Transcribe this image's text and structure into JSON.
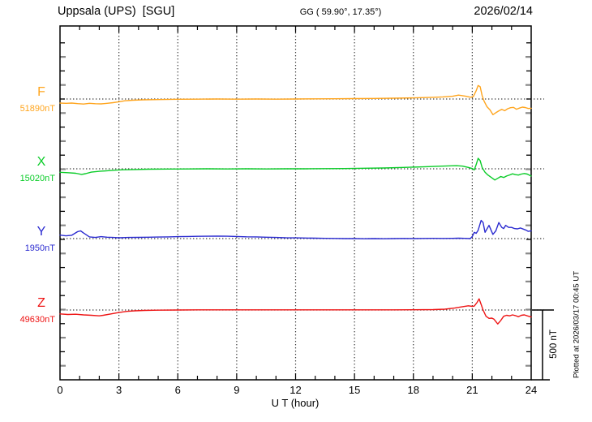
{
  "header": {
    "station": "Uppsala (UPS)  [SGU]",
    "coords": "GG ( 59.90°, 17.35°)",
    "date": "2026/02/14"
  },
  "footer": {
    "xlabel": "U T (hour)",
    "scale_bar_label": "500 nT",
    "plotted_at": "Plotted at 2026/03/17 00:45 UT"
  },
  "chart_data": {
    "type": "line",
    "title": "Uppsala (UPS) [SGU] magnetogram for 2026/02/14",
    "xlabel": "U T (hour)",
    "x_range": [
      0,
      24
    ],
    "x_tick_labels": [
      "0",
      "3",
      "6",
      "9",
      "12",
      "15",
      "18",
      "21",
      "24"
    ],
    "x_gridline_hours": [
      3,
      6,
      9,
      12,
      15,
      18,
      21
    ],
    "scale_bar_nT": 500,
    "grid": "dotted vertical every 3 h, dotted horizontal baseline per component",
    "legend_position": "left margin, one colored label per trace",
    "series": [
      {
        "name": "F",
        "baseline_label": "51890nT",
        "baseline_nT": 51890,
        "color": "#FFA51E",
        "points": [
          [
            0,
            -29
          ],
          [
            0.3,
            -31
          ],
          [
            0.6,
            -29
          ],
          [
            0.9,
            -33
          ],
          [
            1.2,
            -36
          ],
          [
            1.5,
            -31
          ],
          [
            1.8,
            -34
          ],
          [
            2.1,
            -35
          ],
          [
            2.4,
            -31
          ],
          [
            2.7,
            -26
          ],
          [
            3,
            -20
          ],
          [
            3.3,
            -13
          ],
          [
            3.7,
            -9
          ],
          [
            4.2,
            -6
          ],
          [
            5,
            -4
          ],
          [
            6,
            -2
          ],
          [
            7,
            -1
          ],
          [
            8,
            0
          ],
          [
            9,
            -1
          ],
          [
            10,
            0
          ],
          [
            11,
            -1
          ],
          [
            12,
            0
          ],
          [
            13,
            1
          ],
          [
            14,
            2
          ],
          [
            15,
            3
          ],
          [
            16,
            4
          ],
          [
            17,
            6
          ],
          [
            18,
            8
          ],
          [
            19,
            12
          ],
          [
            19.5,
            15
          ],
          [
            20,
            20
          ],
          [
            20.3,
            28
          ],
          [
            20.5,
            24
          ],
          [
            20.7,
            19
          ],
          [
            20.9,
            13
          ],
          [
            21.05,
            17
          ],
          [
            21.2,
            60
          ],
          [
            21.3,
            97
          ],
          [
            21.4,
            88
          ],
          [
            21.5,
            25
          ],
          [
            21.6,
            -15
          ],
          [
            21.75,
            -55
          ],
          [
            21.9,
            -78
          ],
          [
            22.05,
            -112
          ],
          [
            22.2,
            -98
          ],
          [
            22.35,
            -85
          ],
          [
            22.5,
            -74
          ],
          [
            22.65,
            -84
          ],
          [
            22.8,
            -70
          ],
          [
            22.95,
            -62
          ],
          [
            23.1,
            -60
          ],
          [
            23.25,
            -73
          ],
          [
            23.4,
            -65
          ],
          [
            23.55,
            -58
          ],
          [
            23.7,
            -61
          ],
          [
            23.85,
            -68
          ],
          [
            24,
            -66
          ]
        ]
      },
      {
        "name": "X",
        "baseline_label": "15020nT",
        "baseline_nT": 15020,
        "color": "#0ACC28",
        "points": [
          [
            0,
            -25
          ],
          [
            0.4,
            -28
          ],
          [
            0.8,
            -32
          ],
          [
            1.1,
            -40
          ],
          [
            1.3,
            -35
          ],
          [
            1.6,
            -24
          ],
          [
            2,
            -18
          ],
          [
            2.4,
            -14
          ],
          [
            2.8,
            -10
          ],
          [
            3.2,
            -7
          ],
          [
            3.8,
            -5
          ],
          [
            4.5,
            -3
          ],
          [
            5.5,
            -2
          ],
          [
            6.5,
            -1
          ],
          [
            7.5,
            0
          ],
          [
            8.5,
            -1
          ],
          [
            9.5,
            0
          ],
          [
            10.5,
            -1
          ],
          [
            11.5,
            0
          ],
          [
            12.5,
            0
          ],
          [
            13.5,
            1
          ],
          [
            14.5,
            2
          ],
          [
            15.5,
            4
          ],
          [
            16.5,
            6
          ],
          [
            17.5,
            10
          ],
          [
            18.5,
            14
          ],
          [
            19.2,
            18
          ],
          [
            19.8,
            21
          ],
          [
            20.2,
            22
          ],
          [
            20.5,
            19
          ],
          [
            20.8,
            10
          ],
          [
            21,
            2
          ],
          [
            21.1,
            -8
          ],
          [
            21.2,
            30
          ],
          [
            21.3,
            75
          ],
          [
            21.4,
            58
          ],
          [
            21.5,
            10
          ],
          [
            21.65,
            -25
          ],
          [
            21.8,
            -45
          ],
          [
            22,
            -65
          ],
          [
            22.15,
            -80
          ],
          [
            22.3,
            -68
          ],
          [
            22.45,
            -55
          ],
          [
            22.6,
            -62
          ],
          [
            22.75,
            -52
          ],
          [
            22.9,
            -44
          ],
          [
            23.05,
            -36
          ],
          [
            23.2,
            -42
          ],
          [
            23.35,
            -45
          ],
          [
            23.5,
            -38
          ],
          [
            23.65,
            -34
          ],
          [
            23.8,
            -38
          ],
          [
            23.9,
            -45
          ],
          [
            24,
            -52
          ]
        ]
      },
      {
        "name": "Y",
        "baseline_label": "1950nT",
        "baseline_nT": 1950,
        "color": "#2B2BD0",
        "points": [
          [
            0,
            25
          ],
          [
            0.3,
            20
          ],
          [
            0.6,
            24
          ],
          [
            0.9,
            50
          ],
          [
            1.05,
            55
          ],
          [
            1.2,
            40
          ],
          [
            1.5,
            12
          ],
          [
            1.8,
            8
          ],
          [
            2.1,
            14
          ],
          [
            2.4,
            10
          ],
          [
            2.7,
            8
          ],
          [
            3,
            6
          ],
          [
            3.5,
            8
          ],
          [
            4,
            9
          ],
          [
            4.5,
            10
          ],
          [
            5,
            11
          ],
          [
            5.5,
            12
          ],
          [
            6,
            14
          ],
          [
            6.5,
            15
          ],
          [
            7,
            16
          ],
          [
            7.5,
            17
          ],
          [
            8,
            18
          ],
          [
            8.5,
            17
          ],
          [
            9,
            15
          ],
          [
            9.5,
            13
          ],
          [
            10,
            12
          ],
          [
            10.5,
            10
          ],
          [
            11,
            8
          ],
          [
            11.5,
            6
          ],
          [
            12,
            5
          ],
          [
            12.5,
            4
          ],
          [
            13,
            3
          ],
          [
            13.5,
            2
          ],
          [
            14,
            1
          ],
          [
            14.5,
            0
          ],
          [
            15,
            0
          ],
          [
            15.5,
            -1
          ],
          [
            16,
            0
          ],
          [
            16.5,
            -1
          ],
          [
            17,
            0
          ],
          [
            17.5,
            1
          ],
          [
            18,
            0
          ],
          [
            18.5,
            1
          ],
          [
            19,
            2
          ],
          [
            19.5,
            1
          ],
          [
            20,
            2
          ],
          [
            20.3,
            3
          ],
          [
            20.6,
            2
          ],
          [
            20.9,
            0
          ],
          [
            21,
            15
          ],
          [
            21.1,
            45
          ],
          [
            21.2,
            38
          ],
          [
            21.3,
            60
          ],
          [
            21.45,
            130
          ],
          [
            21.55,
            115
          ],
          [
            21.65,
            45
          ],
          [
            21.85,
            95
          ],
          [
            22.05,
            30
          ],
          [
            22.2,
            55
          ],
          [
            22.35,
            115
          ],
          [
            22.5,
            80
          ],
          [
            22.6,
            72
          ],
          [
            22.7,
            95
          ],
          [
            22.85,
            80
          ],
          [
            23,
            80
          ],
          [
            23.15,
            72
          ],
          [
            23.3,
            70
          ],
          [
            23.45,
            76
          ],
          [
            23.6,
            68
          ],
          [
            23.75,
            60
          ],
          [
            23.85,
            52
          ],
          [
            24,
            56
          ]
        ]
      },
      {
        "name": "Z",
        "baseline_label": "49630nT",
        "baseline_nT": 49630,
        "color": "#EE1414",
        "points": [
          [
            0,
            -28
          ],
          [
            0.4,
            -32
          ],
          [
            0.8,
            -30
          ],
          [
            1.2,
            -35
          ],
          [
            1.6,
            -38
          ],
          [
            2,
            -42
          ],
          [
            2.2,
            -38
          ],
          [
            2.6,
            -28
          ],
          [
            3,
            -18
          ],
          [
            3.4,
            -10
          ],
          [
            3.8,
            -6
          ],
          [
            4.3,
            -3
          ],
          [
            5,
            -1
          ],
          [
            6,
            0
          ],
          [
            7,
            1
          ],
          [
            8,
            1
          ],
          [
            9,
            1
          ],
          [
            10,
            1
          ],
          [
            11,
            1
          ],
          [
            12,
            1
          ],
          [
            13,
            1
          ],
          [
            14,
            1
          ],
          [
            15,
            1
          ],
          [
            16,
            1
          ],
          [
            17,
            1
          ],
          [
            18,
            2
          ],
          [
            19,
            3
          ],
          [
            19.6,
            6
          ],
          [
            20.1,
            14
          ],
          [
            20.5,
            24
          ],
          [
            20.8,
            30
          ],
          [
            21,
            26
          ],
          [
            21.1,
            28
          ],
          [
            21.25,
            55
          ],
          [
            21.35,
            80
          ],
          [
            21.45,
            40
          ],
          [
            21.55,
            0
          ],
          [
            21.7,
            -45
          ],
          [
            21.85,
            -60
          ],
          [
            22,
            -58
          ],
          [
            22.1,
            -65
          ],
          [
            22.3,
            -100
          ],
          [
            22.45,
            -75
          ],
          [
            22.6,
            -45
          ],
          [
            22.75,
            -38
          ],
          [
            22.9,
            -42
          ],
          [
            23.05,
            -35
          ],
          [
            23.2,
            -40
          ],
          [
            23.35,
            -48
          ],
          [
            23.5,
            -38
          ],
          [
            23.65,
            -35
          ],
          [
            23.8,
            -42
          ],
          [
            23.9,
            -46
          ],
          [
            24,
            -50
          ]
        ]
      }
    ]
  }
}
